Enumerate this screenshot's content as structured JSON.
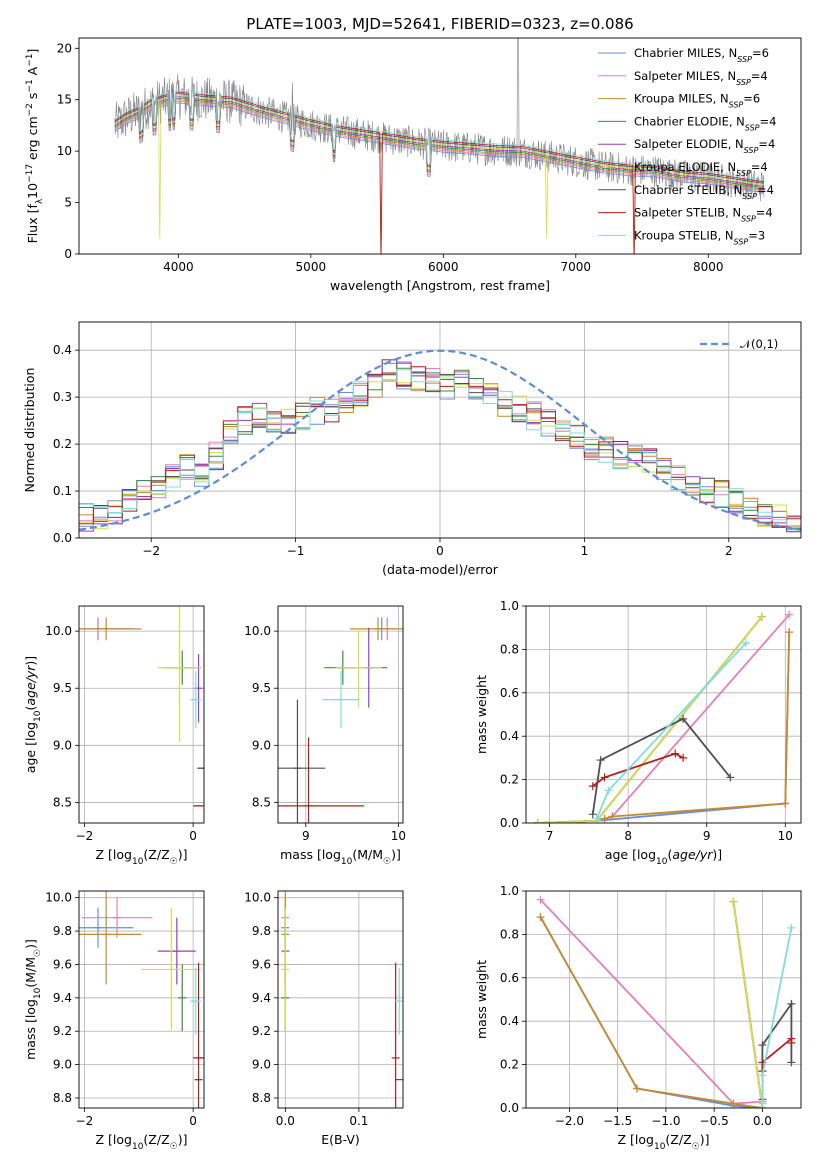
{
  "figure": {
    "title": "PLATE=1003, MJD=52641, FIBERID=0323, z=0.086"
  },
  "series": [
    {
      "name": "Chabrier MILES",
      "nssp": "6",
      "color": "#6a8fd6"
    },
    {
      "name": "Salpeter MILES",
      "nssp": "4",
      "color": "#e57fb9"
    },
    {
      "name": "Kroupa MILES",
      "nssp": "6",
      "color": "#c58a2e"
    },
    {
      "name": "Chabrier ELODIE",
      "nssp": "4",
      "color": "#3d8a3d"
    },
    {
      "name": "Salpeter ELODIE",
      "nssp": "4",
      "color": "#9b3fc4"
    },
    {
      "name": "Kroupa ELODIE",
      "nssp": "4",
      "color": "#d2e04a"
    },
    {
      "name": "Chabrier STELIB",
      "nssp": "4",
      "color": "#505050"
    },
    {
      "name": "Salpeter STELIB",
      "nssp": "4",
      "color": "#b01f1f"
    },
    {
      "name": "Kroupa STELIB",
      "nssp": "3",
      "color": "#7fdde0"
    }
  ],
  "chart_data": [
    {
      "id": "spectrum",
      "type": "line",
      "xlabel": "wavelength [Angstrom, rest frame]",
      "ylabel": "Flux [f_λ 10^-17 erg cm^-2 s^-1 A^-1]",
      "xlim": [
        3250,
        8700
      ],
      "ylim": [
        0,
        21
      ],
      "xticks": [
        4000,
        5000,
        6000,
        7000,
        8000
      ],
      "yticks": [
        0,
        5,
        10,
        15,
        20
      ],
      "data_color": "#808080",
      "continuum": [
        [
          3520,
          12.5
        ],
        [
          3600,
          13.2
        ],
        [
          3700,
          13.8
        ],
        [
          3800,
          14.6
        ],
        [
          3900,
          15.0
        ],
        [
          4000,
          15.3
        ],
        [
          4200,
          15.0
        ],
        [
          4400,
          14.8
        ],
        [
          4600,
          14.0
        ],
        [
          4800,
          13.3
        ],
        [
          5000,
          12.6
        ],
        [
          5200,
          12.0
        ],
        [
          5400,
          11.6
        ],
        [
          5600,
          11.2
        ],
        [
          5800,
          10.8
        ],
        [
          6000,
          10.5
        ],
        [
          6200,
          10.3
        ],
        [
          6400,
          10.1
        ],
        [
          6600,
          10.0
        ],
        [
          6800,
          9.5
        ],
        [
          7000,
          9.0
        ],
        [
          7200,
          8.5
        ],
        [
          7400,
          8.2
        ],
        [
          7600,
          8.1
        ],
        [
          7800,
          7.6
        ],
        [
          8000,
          7.4
        ],
        [
          8200,
          7.0
        ],
        [
          8400,
          6.6
        ]
      ],
      "grid": false,
      "legend": "top-right"
    },
    {
      "id": "residuals",
      "type": "histogram",
      "xlabel": "(data-model)/error",
      "ylabel": "Normed distribution",
      "xlim": [
        -2.5,
        2.5
      ],
      "ylim": [
        0,
        0.46
      ],
      "xticks": [
        -2,
        -1,
        0,
        1,
        2
      ],
      "yticks": [
        0.0,
        0.1,
        0.2,
        0.3,
        0.4
      ],
      "bin_width": 0.1,
      "reference": {
        "label": "𝒩(0,1)",
        "color": "#5b8ed6",
        "mean": 0,
        "sigma": 1
      },
      "envelope": [
        [
          -2.5,
          0.045
        ],
        [
          -2.3,
          0.04
        ],
        [
          -2.1,
          0.1
        ],
        [
          -1.9,
          0.11
        ],
        [
          -1.8,
          0.16
        ],
        [
          -1.6,
          0.13
        ],
        [
          -1.5,
          0.22
        ],
        [
          -1.4,
          0.24
        ],
        [
          -1.3,
          0.26
        ],
        [
          -1.1,
          0.25
        ],
        [
          -1.0,
          0.24
        ],
        [
          -0.9,
          0.28
        ],
        [
          -0.8,
          0.26
        ],
        [
          -0.6,
          0.3
        ],
        [
          -0.5,
          0.31
        ],
        [
          -0.4,
          0.34
        ],
        [
          -0.3,
          0.37
        ],
        [
          -0.2,
          0.32
        ],
        [
          -0.1,
          0.35
        ],
        [
          0.0,
          0.32
        ],
        [
          0.1,
          0.33
        ],
        [
          0.2,
          0.35
        ],
        [
          0.3,
          0.3
        ],
        [
          0.4,
          0.3
        ],
        [
          0.5,
          0.27
        ],
        [
          0.6,
          0.28
        ],
        [
          0.7,
          0.24
        ],
        [
          0.8,
          0.25
        ],
        [
          0.9,
          0.22
        ],
        [
          1.0,
          0.2
        ],
        [
          1.2,
          0.18
        ],
        [
          1.4,
          0.17
        ],
        [
          1.6,
          0.14
        ],
        [
          1.8,
          0.11
        ],
        [
          2.0,
          0.09
        ],
        [
          2.2,
          0.06
        ],
        [
          2.4,
          0.04
        ],
        [
          2.5,
          0.03
        ]
      ],
      "grid": true,
      "legend": "top-right"
    },
    {
      "id": "age-vs-Z",
      "type": "scatter",
      "xlabel": "Z [log10(Z/Z☉)]",
      "ylabel": "age [log10(age/yr)]",
      "xlim": [
        -2.1,
        0.2
      ],
      "ylim": [
        8.32,
        10.22
      ],
      "xticks": [
        -2,
        0
      ],
      "yticks": [
        8.5,
        9.0,
        9.5,
        10.0
      ],
      "points": [
        {
          "x": -1.75,
          "xerr": 0.65,
          "y": 10.02,
          "yerr": 0.1
        },
        {
          "x": -1.75,
          "xerr": 0.0,
          "y": 10.02,
          "yerr": 0.1
        },
        {
          "x": -1.6,
          "xerr": 0.65,
          "y": 10.02,
          "yerr": 0.1
        },
        {
          "x": -0.2,
          "xerr": 0.35,
          "y": 9.68,
          "yerr": 0.15
        },
        {
          "x": 0.1,
          "xerr": 0.0,
          "y": 9.5,
          "yerr": 0.3
        },
        {
          "x": -0.25,
          "xerr": 0.4,
          "y": 9.68,
          "yerr": 0.65
        },
        {
          "x": 0.15,
          "xerr": 0.05,
          "y": 8.8,
          "yerr": 0.0
        },
        {
          "x": 0.1,
          "xerr": 0.1,
          "y": 8.47,
          "yerr": 0.0
        },
        {
          "x": 0.05,
          "xerr": 0.1,
          "y": 9.4,
          "yerr": 0.25
        }
      ],
      "grid": true
    },
    {
      "id": "age-vs-mass",
      "type": "scatter",
      "xlabel": "mass [log10(M/M☉)]",
      "ylabel": "",
      "xlim": [
        8.7,
        10.05
      ],
      "ylim": [
        8.32,
        10.22
      ],
      "xticks": [
        9,
        10
      ],
      "yticks": [
        8.5,
        9.0,
        9.5,
        10.0
      ],
      "points": [
        {
          "x": 9.82,
          "xerr": 0.1,
          "y": 10.02,
          "yerr": 0.1
        },
        {
          "x": 9.88,
          "xerr": 0.1,
          "y": 10.02,
          "yerr": 0.1
        },
        {
          "x": 9.78,
          "xerr": 0.3,
          "y": 10.02,
          "yerr": 0.1
        },
        {
          "x": 9.4,
          "xerr": 0.2,
          "y": 9.68,
          "yerr": 0.15
        },
        {
          "x": 9.68,
          "xerr": 0.2,
          "y": 9.68,
          "yerr": 0.35
        },
        {
          "x": 9.57,
          "xerr": 0.25,
          "y": 9.68,
          "yerr": 0.35
        },
        {
          "x": 8.91,
          "xerr": 0.3,
          "y": 8.8,
          "yerr": 0.6
        },
        {
          "x": 9.03,
          "xerr": 0.6,
          "y": 8.47,
          "yerr": 0.6
        },
        {
          "x": 9.38,
          "xerr": 0.2,
          "y": 9.4,
          "yerr": 0.25
        }
      ],
      "grid": true
    },
    {
      "id": "mass-weight-vs-age",
      "type": "line",
      "xlabel": "age [log10(age/yr)]",
      "ylabel": "mass weight",
      "xlim": [
        6.7,
        10.2
      ],
      "ylim": [
        0,
        1.0
      ],
      "xticks": [
        7,
        8,
        9,
        10
      ],
      "yticks": [
        0.0,
        0.2,
        0.4,
        0.6,
        0.8,
        1.0
      ],
      "series": [
        {
          "x": [
            6.85,
            7.6,
            10.0,
            10.05
          ],
          "y": [
            0.0,
            0.01,
            0.09,
            0.88
          ]
        },
        {
          "x": [
            7.7,
            7.8,
            10.05
          ],
          "y": [
            0.02,
            0.03,
            0.96
          ]
        },
        {
          "x": [
            7.7,
            7.8,
            10.0,
            10.05
          ],
          "y": [
            0.02,
            0.03,
            0.09,
            0.88
          ]
        },
        {
          "x": [
            6.85,
            7.6,
            9.7
          ],
          "y": [
            0.0,
            0.01,
            0.95
          ]
        },
        {
          "x": [
            6.85,
            7.6,
            9.7
          ],
          "y": [
            0.0,
            0.01,
            0.95
          ]
        },
        {
          "x": [
            6.85,
            7.6,
            9.7
          ],
          "y": [
            0.0,
            0.01,
            0.95
          ]
        },
        {
          "x": [
            7.55,
            7.65,
            8.7,
            9.3
          ],
          "y": [
            0.04,
            0.29,
            0.48,
            0.21
          ]
        },
        {
          "x": [
            7.55,
            7.7,
            8.6,
            8.7
          ],
          "y": [
            0.17,
            0.21,
            0.32,
            0.3
          ]
        },
        {
          "x": [
            7.6,
            7.75,
            9.5
          ],
          "y": [
            0.02,
            0.15,
            0.83
          ]
        }
      ],
      "grid": true
    },
    {
      "id": "mass-vs-Z",
      "type": "scatter",
      "xlabel": "Z [log10(Z/Z☉)]",
      "ylabel": "mass [log10(M/M☉)]",
      "xlim": [
        -2.1,
        0.2
      ],
      "ylim": [
        8.74,
        10.04
      ],
      "xticks": [
        -2,
        0
      ],
      "yticks": [
        8.8,
        9.0,
        9.2,
        9.4,
        9.6,
        9.8,
        10.0
      ],
      "points": [
        {
          "x": -1.75,
          "xerr": 0.65,
          "y": 9.82,
          "yerr": 0.12
        },
        {
          "x": -1.4,
          "xerr": 0.65,
          "y": 9.88,
          "yerr": 0.12
        },
        {
          "x": -1.6,
          "xerr": 0.65,
          "y": 9.78,
          "yerr": 0.3
        },
        {
          "x": -0.2,
          "xerr": 0.0,
          "y": 9.4,
          "yerr": 0.2
        },
        {
          "x": -0.3,
          "xerr": 0.35,
          "y": 9.68,
          "yerr": 0.2
        },
        {
          "x": -0.4,
          "xerr": 0.55,
          "y": 9.57,
          "yerr": 0.37
        },
        {
          "x": 0.1,
          "xerr": 0.05,
          "y": 8.91,
          "yerr": 0.0
        },
        {
          "x": 0.1,
          "xerr": 0.1,
          "y": 9.04,
          "yerr": 0.57
        },
        {
          "x": 0.05,
          "xerr": 0.1,
          "y": 9.38,
          "yerr": 0.2
        }
      ],
      "grid": true
    },
    {
      "id": "mass-vs-EBV",
      "type": "scatter",
      "xlabel": "E(B-V)",
      "ylabel": "",
      "xlim": [
        -0.01,
        0.16
      ],
      "ylim": [
        8.74,
        10.04
      ],
      "xticks": [
        0.0,
        0.1
      ],
      "yticks": [
        8.8,
        9.0,
        9.2,
        9.4,
        9.6,
        9.8,
        10.0
      ],
      "points": [
        {
          "x": 0.0,
          "y": 9.82,
          "yerr": 0.12
        },
        {
          "x": 0.0,
          "y": 9.88,
          "yerr": 0.12
        },
        {
          "x": 0.0,
          "y": 9.78,
          "yerr": 0.3
        },
        {
          "x": 0.0,
          "y": 9.4,
          "yerr": 0.2
        },
        {
          "x": 0.0,
          "y": 9.68,
          "yerr": 0.2
        },
        {
          "x": 0.0,
          "y": 9.57,
          "yerr": 0.37
        },
        {
          "x": 0.155,
          "y": 8.91,
          "yerr": 0.0
        },
        {
          "x": 0.15,
          "y": 9.04,
          "yerr": 0.57
        },
        {
          "x": 0.155,
          "y": 9.38,
          "yerr": 0.2
        }
      ],
      "grid": true
    },
    {
      "id": "mass-weight-vs-Z",
      "type": "line",
      "xlabel": "Z [log10(Z/Z☉)]",
      "ylabel": "mass weight",
      "xlim": [
        -2.45,
        0.4
      ],
      "ylim": [
        0,
        1.0
      ],
      "xticks": [
        -2.0,
        -1.5,
        -1.0,
        -0.5,
        0.0
      ],
      "yticks": [
        0.0,
        0.2,
        0.4,
        0.6,
        0.8,
        1.0
      ],
      "series": [
        {
          "x": [
            -2.3,
            -1.3,
            -0.3,
            0.0
          ],
          "y": [
            0.88,
            0.09,
            0.01,
            0.0
          ]
        },
        {
          "x": [
            -2.3,
            -0.3,
            0.0
          ],
          "y": [
            0.96,
            0.02,
            0.03
          ]
        },
        {
          "x": [
            -2.3,
            -1.3,
            -0.3,
            0.0
          ],
          "y": [
            0.88,
            0.09,
            0.02,
            0.0
          ]
        },
        {
          "x": [
            -0.3,
            0.0
          ],
          "y": [
            0.95,
            0.0
          ]
        },
        {
          "x": [
            -0.3,
            0.0
          ],
          "y": [
            0.95,
            0.0
          ]
        },
        {
          "x": [
            -0.3,
            0.0
          ],
          "y": [
            0.95,
            0.0
          ]
        },
        {
          "x": [
            0.0,
            0.0,
            0.3,
            0.3
          ],
          "y": [
            0.04,
            0.29,
            0.48,
            0.21
          ]
        },
        {
          "x": [
            0.0,
            0.0,
            0.3,
            0.3
          ],
          "y": [
            0.17,
            0.21,
            0.32,
            0.3
          ]
        },
        {
          "x": [
            0.0,
            0.0,
            0.3
          ],
          "y": [
            0.02,
            0.15,
            0.83
          ]
        }
      ],
      "grid": true
    }
  ]
}
